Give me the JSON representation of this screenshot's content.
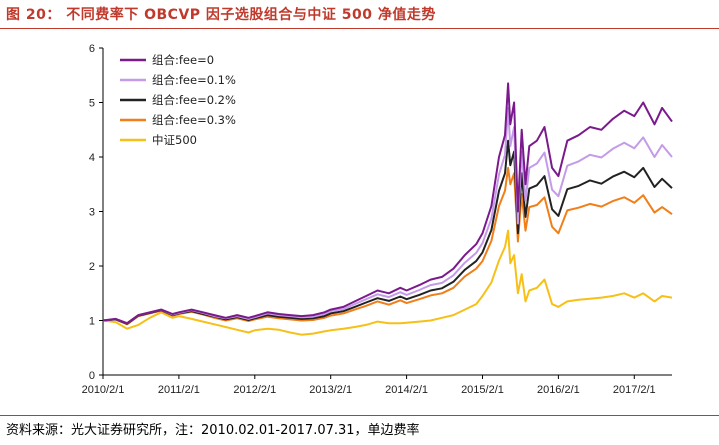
{
  "page": {
    "title": "图 20：  不同费率下 OBCVP 因子选股组合与中证 500 净值走势",
    "source": "资料来源：光大证券研究所，注：2010.02.01-2017.07.31，单边费率"
  },
  "chart_data": {
    "type": "line",
    "title": "",
    "xlabel": "",
    "ylabel": "",
    "ylim": [
      0,
      6
    ],
    "yticks": [
      0,
      1,
      2,
      3,
      4,
      5,
      6
    ],
    "xlim": [
      2010.083,
      2017.58
    ],
    "xticks": [
      {
        "x": 2010.083,
        "label": "2010/2/1"
      },
      {
        "x": 2011.083,
        "label": "2011/2/1"
      },
      {
        "x": 2012.083,
        "label": "2012/2/1"
      },
      {
        "x": 2013.083,
        "label": "2013/2/1"
      },
      {
        "x": 2014.083,
        "label": "2014/2/1"
      },
      {
        "x": 2015.083,
        "label": "2015/2/1"
      },
      {
        "x": 2016.083,
        "label": "2016/2/1"
      },
      {
        "x": 2017.083,
        "label": "2017/2/1"
      }
    ],
    "grid": false,
    "legend_position": "top-left",
    "x": [
      2010.083,
      2010.25,
      2010.4,
      2010.55,
      2010.7,
      2010.85,
      2011.0,
      2011.083,
      2011.25,
      2011.4,
      2011.55,
      2011.7,
      2011.85,
      2012.0,
      2012.083,
      2012.25,
      2012.4,
      2012.55,
      2012.7,
      2012.85,
      2013.0,
      2013.083,
      2013.25,
      2013.4,
      2013.55,
      2013.7,
      2013.85,
      2014.0,
      2014.083,
      2014.25,
      2014.4,
      2014.55,
      2014.7,
      2014.85,
      2015.0,
      2015.083,
      2015.2,
      2015.3,
      2015.38,
      2015.42,
      2015.45,
      2015.5,
      2015.55,
      2015.6,
      2015.65,
      2015.7,
      2015.8,
      2015.9,
      2016.0,
      2016.083,
      2016.2,
      2016.35,
      2016.5,
      2016.65,
      2016.8,
      2016.95,
      2017.083,
      2017.2,
      2017.35,
      2017.45,
      2017.58
    ],
    "series": [
      {
        "name": "组合:fee=0",
        "color": "#7b1a8c",
        "values": [
          1.0,
          1.03,
          0.95,
          1.1,
          1.15,
          1.2,
          1.12,
          1.15,
          1.2,
          1.15,
          1.1,
          1.05,
          1.1,
          1.05,
          1.08,
          1.15,
          1.12,
          1.1,
          1.08,
          1.1,
          1.15,
          1.2,
          1.25,
          1.35,
          1.45,
          1.55,
          1.5,
          1.6,
          1.55,
          1.65,
          1.75,
          1.8,
          1.95,
          2.2,
          2.4,
          2.6,
          3.1,
          4.0,
          4.4,
          5.35,
          4.6,
          5.0,
          3.0,
          4.5,
          3.5,
          4.2,
          4.3,
          4.55,
          3.8,
          3.65,
          4.3,
          4.4,
          4.55,
          4.5,
          4.7,
          4.85,
          4.75,
          5.0,
          4.6,
          4.9,
          4.65
        ]
      },
      {
        "name": "组合:fee=0.1%",
        "color": "#c39be8",
        "values": [
          1.0,
          1.03,
          0.95,
          1.1,
          1.15,
          1.2,
          1.11,
          1.14,
          1.19,
          1.14,
          1.08,
          1.04,
          1.08,
          1.03,
          1.06,
          1.13,
          1.1,
          1.08,
          1.06,
          1.07,
          1.12,
          1.17,
          1.21,
          1.3,
          1.39,
          1.48,
          1.43,
          1.52,
          1.47,
          1.56,
          1.65,
          1.69,
          1.83,
          2.06,
          2.24,
          2.42,
          2.87,
          3.68,
          4.04,
          4.9,
          4.2,
          4.55,
          2.78,
          4.1,
          3.2,
          3.8,
          3.88,
          4.08,
          3.4,
          3.28,
          3.84,
          3.92,
          4.04,
          3.99,
          4.15,
          4.26,
          4.16,
          4.36,
          4.0,
          4.22,
          4.0
        ]
      },
      {
        "name": "组合:fee=0.2%",
        "color": "#222222",
        "values": [
          1.0,
          1.02,
          0.94,
          1.09,
          1.14,
          1.19,
          1.1,
          1.13,
          1.17,
          1.12,
          1.07,
          1.02,
          1.06,
          1.01,
          1.04,
          1.1,
          1.07,
          1.05,
          1.03,
          1.04,
          1.08,
          1.13,
          1.17,
          1.25,
          1.33,
          1.41,
          1.36,
          1.44,
          1.39,
          1.47,
          1.55,
          1.59,
          1.71,
          1.93,
          2.09,
          2.25,
          2.66,
          3.38,
          3.7,
          4.3,
          3.85,
          4.1,
          2.6,
          3.7,
          2.9,
          3.42,
          3.48,
          3.65,
          3.04,
          2.92,
          3.41,
          3.47,
          3.57,
          3.51,
          3.64,
          3.73,
          3.63,
          3.8,
          3.45,
          3.6,
          3.43
        ]
      },
      {
        "name": "组合:fee=0.3%",
        "color": "#f07f1a",
        "values": [
          1.0,
          1.02,
          0.93,
          1.08,
          1.13,
          1.18,
          1.09,
          1.12,
          1.16,
          1.11,
          1.05,
          1.0,
          1.04,
          0.99,
          1.02,
          1.07,
          1.04,
          1.02,
          1.0,
          1.01,
          1.05,
          1.09,
          1.13,
          1.2,
          1.27,
          1.35,
          1.29,
          1.37,
          1.32,
          1.39,
          1.46,
          1.5,
          1.6,
          1.81,
          1.95,
          2.09,
          2.46,
          3.1,
          3.38,
          3.8,
          3.5,
          3.7,
          2.45,
          3.32,
          2.65,
          3.08,
          3.12,
          3.26,
          2.72,
          2.6,
          3.02,
          3.07,
          3.14,
          3.09,
          3.19,
          3.26,
          3.16,
          3.3,
          2.98,
          3.08,
          2.95
        ]
      },
      {
        "name": "中证500",
        "color": "#f6c018",
        "values": [
          1.0,
          0.97,
          0.85,
          0.92,
          1.05,
          1.15,
          1.05,
          1.08,
          1.03,
          0.98,
          0.93,
          0.88,
          0.83,
          0.78,
          0.82,
          0.85,
          0.83,
          0.78,
          0.74,
          0.76,
          0.8,
          0.82,
          0.85,
          0.88,
          0.92,
          0.98,
          0.95,
          0.95,
          0.96,
          0.98,
          1.0,
          1.05,
          1.1,
          1.2,
          1.3,
          1.45,
          1.7,
          2.1,
          2.35,
          2.65,
          2.05,
          2.2,
          1.5,
          1.85,
          1.35,
          1.55,
          1.6,
          1.75,
          1.3,
          1.25,
          1.35,
          1.38,
          1.4,
          1.42,
          1.45,
          1.5,
          1.42,
          1.5,
          1.35,
          1.45,
          1.42
        ]
      }
    ]
  }
}
